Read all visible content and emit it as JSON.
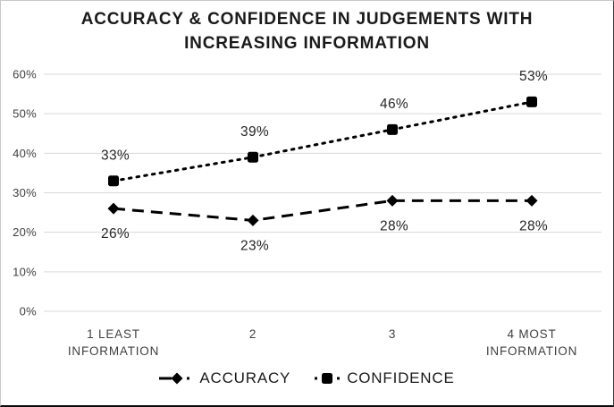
{
  "window": {
    "background": "#ffffff"
  },
  "chart_data": {
    "type": "line",
    "title": "ACCURACY & CONFIDENCE IN JUDGEMENTS WITH INCREASING INFORMATION",
    "categories": [
      "1 LEAST INFORMATION",
      "2",
      "3",
      "4 MOST INFORMATION"
    ],
    "series": [
      {
        "name": "ACCURACY",
        "values": [
          26,
          23,
          28,
          28
        ],
        "marker": "diamond",
        "line_style": "dashed",
        "label_position": "below",
        "color": "#000000"
      },
      {
        "name": "CONFIDENCE",
        "values": [
          33,
          39,
          46,
          53
        ],
        "marker": "square",
        "line_style": "dotted",
        "label_position": "above",
        "color": "#000000"
      }
    ],
    "ylim": [
      0,
      60
    ],
    "y_tick_step": 10,
    "y_tick_labels": [
      "0%",
      "10%",
      "20%",
      "30%",
      "40%",
      "50%",
      "60%"
    ],
    "data_label_suffix": "%",
    "grid": "horizontal",
    "legend_position": "bottom",
    "colors": {
      "gridline": "#d9d9d9",
      "axis_label": "#404040",
      "data_label": "#262626",
      "title": "#1a1a1a",
      "series": "#000000"
    }
  }
}
